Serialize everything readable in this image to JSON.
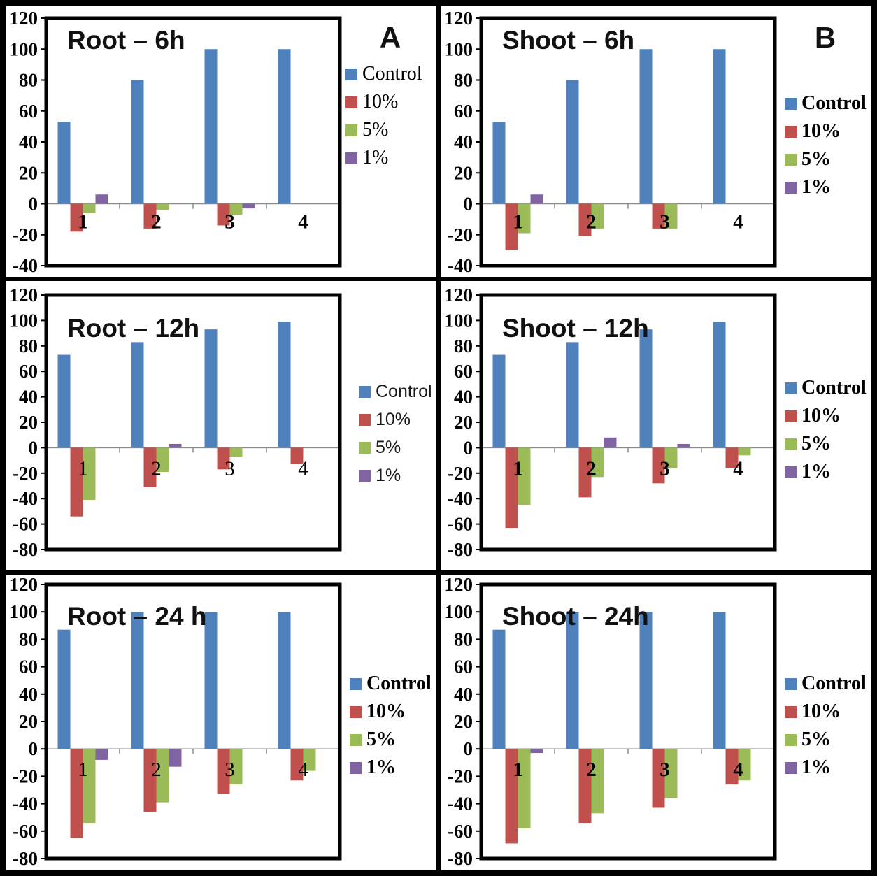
{
  "figure": {
    "panel_labels": [
      "A",
      "B"
    ],
    "series_names": [
      "Control",
      "10%",
      "5%",
      "1%"
    ],
    "palette": {
      "control": "#4F81BD",
      "pct10": "#C0504D",
      "pct5": "#9BBB59",
      "pct1": "#8064A2"
    }
  },
  "chart_data": [
    {
      "id": "root-6h",
      "type": "bar",
      "title": "Root – 6h",
      "panel_label": "A",
      "categories": [
        "1",
        "2",
        "3",
        "4"
      ],
      "series": [
        {
          "name": "Control",
          "color": "#4F81BD",
          "values": [
            53,
            80,
            100,
            100
          ]
        },
        {
          "name": "10%",
          "color": "#C0504D",
          "values": [
            -18,
            -16,
            -14,
            0
          ]
        },
        {
          "name": "5%",
          "color": "#9BBB59",
          "values": [
            -6,
            -4,
            -7,
            0
          ]
        },
        {
          "name": "1%",
          "color": "#8064A2",
          "values": [
            6,
            0,
            -3,
            0
          ]
        }
      ],
      "ylim": [
        -40,
        120
      ],
      "ytick_step": 20,
      "grid": false,
      "legend_position": "right",
      "legend_font": "serif",
      "legend_bold": false,
      "xtick_bold": true
    },
    {
      "id": "shoot-6h",
      "type": "bar",
      "title": "Shoot – 6h",
      "panel_label": "B",
      "categories": [
        "1",
        "2",
        "3",
        "4"
      ],
      "series": [
        {
          "name": "Control",
          "color": "#4F81BD",
          "values": [
            53,
            80,
            100,
            100
          ]
        },
        {
          "name": "10%",
          "color": "#C0504D",
          "values": [
            -30,
            -21,
            -16,
            0
          ]
        },
        {
          "name": "5%",
          "color": "#9BBB59",
          "values": [
            -19,
            -16,
            -16,
            0
          ]
        },
        {
          "name": "1%",
          "color": "#8064A2",
          "values": [
            6,
            0,
            0,
            0
          ]
        }
      ],
      "ylim": [
        -40,
        120
      ],
      "ytick_step": 20,
      "grid": false,
      "legend_position": "right",
      "legend_font": "serif",
      "legend_bold": true,
      "xtick_bold": true
    },
    {
      "id": "root-12h",
      "type": "bar",
      "title": "Root – 12h",
      "panel_label": "",
      "categories": [
        "1",
        "2",
        "3",
        "4"
      ],
      "series": [
        {
          "name": "Control",
          "color": "#4F81BD",
          "values": [
            73,
            83,
            93,
            99
          ]
        },
        {
          "name": "10%",
          "color": "#C0504D",
          "values": [
            -54,
            -31,
            -17,
            -13
          ]
        },
        {
          "name": "5%",
          "color": "#9BBB59",
          "values": [
            -41,
            -19,
            -7,
            0
          ]
        },
        {
          "name": "1%",
          "color": "#8064A2",
          "values": [
            0,
            3,
            0,
            0
          ]
        }
      ],
      "ylim": [
        -80,
        120
      ],
      "ytick_step": 20,
      "grid": false,
      "legend_position": "right",
      "legend_font": "sans",
      "legend_bold": false,
      "xtick_bold": false
    },
    {
      "id": "shoot-12h",
      "type": "bar",
      "title": "Shoot – 12h",
      "panel_label": "",
      "categories": [
        "1",
        "2",
        "3",
        "4"
      ],
      "series": [
        {
          "name": "Control",
          "color": "#4F81BD",
          "values": [
            73,
            83,
            93,
            99
          ]
        },
        {
          "name": "10%",
          "color": "#C0504D",
          "values": [
            -63,
            -39,
            -28,
            -16
          ]
        },
        {
          "name": "5%",
          "color": "#9BBB59",
          "values": [
            -45,
            -23,
            -16,
            -6
          ]
        },
        {
          "name": "1%",
          "color": "#8064A2",
          "values": [
            0,
            8,
            3,
            0
          ]
        }
      ],
      "ylim": [
        -80,
        120
      ],
      "ytick_step": 20,
      "grid": false,
      "legend_position": "right",
      "legend_font": "serif",
      "legend_bold": true,
      "xtick_bold": true
    },
    {
      "id": "root-24h",
      "type": "bar",
      "title": "Root – 24 h",
      "panel_label": "",
      "categories": [
        "1",
        "2",
        "3",
        "4"
      ],
      "series": [
        {
          "name": "Control",
          "color": "#4F81BD",
          "values": [
            87,
            100,
            100,
            100
          ]
        },
        {
          "name": "10%",
          "color": "#C0504D",
          "values": [
            -65,
            -46,
            -33,
            -23
          ]
        },
        {
          "name": "5%",
          "color": "#9BBB59",
          "values": [
            -54,
            -39,
            -26,
            -16
          ]
        },
        {
          "name": "1%",
          "color": "#8064A2",
          "values": [
            -8,
            -13,
            0,
            0
          ]
        }
      ],
      "ylim": [
        -80,
        120
      ],
      "ytick_step": 20,
      "grid": false,
      "legend_position": "right",
      "legend_font": "serif",
      "legend_bold": true,
      "xtick_bold": false
    },
    {
      "id": "shoot-24h",
      "type": "bar",
      "title": "Shoot – 24h",
      "panel_label": "",
      "categories": [
        "1",
        "2",
        "3",
        "4"
      ],
      "series": [
        {
          "name": "Control",
          "color": "#4F81BD",
          "values": [
            87,
            100,
            100,
            100
          ]
        },
        {
          "name": "10%",
          "color": "#C0504D",
          "values": [
            -69,
            -54,
            -43,
            -26
          ]
        },
        {
          "name": "5%",
          "color": "#9BBB59",
          "values": [
            -58,
            -47,
            -36,
            -23
          ]
        },
        {
          "name": "1%",
          "color": "#8064A2",
          "values": [
            -3,
            0,
            0,
            0
          ]
        }
      ],
      "ylim": [
        -80,
        120
      ],
      "ytick_step": 20,
      "grid": false,
      "legend_position": "right",
      "legend_font": "serif",
      "legend_bold": true,
      "xtick_bold": true
    }
  ]
}
